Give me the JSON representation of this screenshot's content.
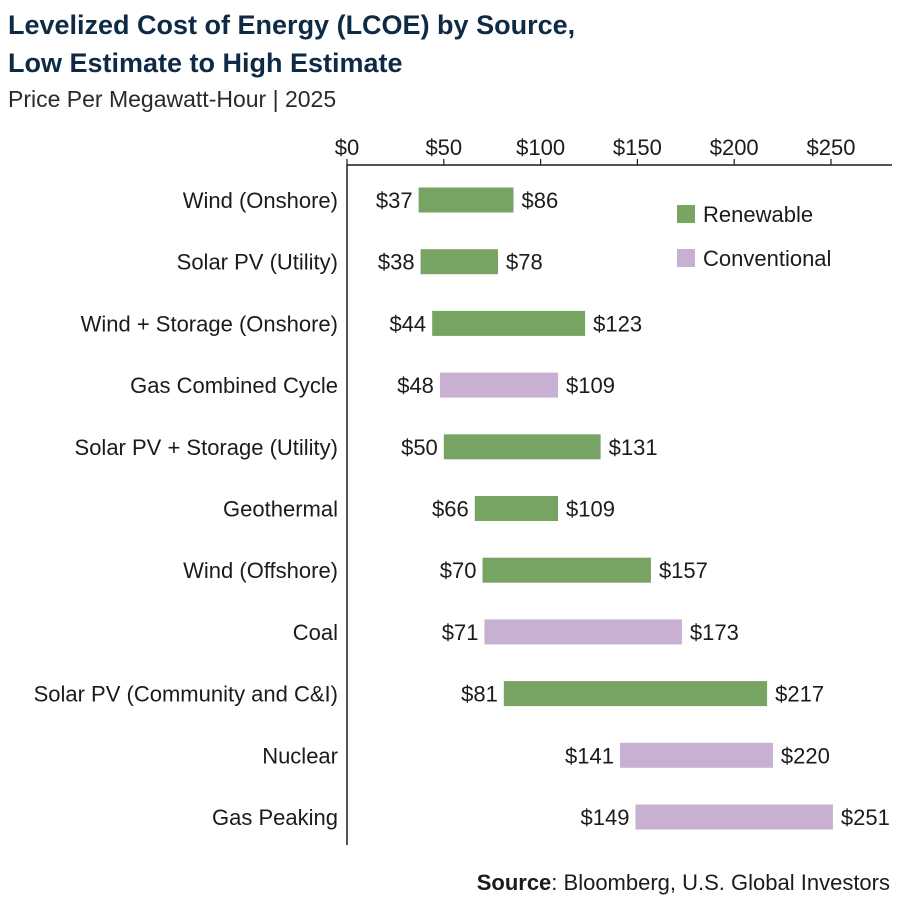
{
  "title_line1": "Levelized Cost of Energy (LCOE) by Source,",
  "title_line2": "Low Estimate to High Estimate",
  "subtitle": "Price Per Megawatt-Hour | 2025",
  "source_label": "Source",
  "source_text": ": Bloomberg, U.S. Global Investors",
  "colors": {
    "renewable": "#77a463",
    "conventional": "#c8b0d2",
    "axis": "#1b1b1b",
    "title": "#0e2a45"
  },
  "chart_data": {
    "type": "bar",
    "subtype": "floating-range-horizontal",
    "title": "Levelized Cost of Energy (LCOE) by Source, Low Estimate to High Estimate",
    "subtitle": "Price Per Megawatt-Hour | 2025",
    "xlabel": "",
    "ylabel": "",
    "xlim": [
      0,
      280
    ],
    "x_ticks": [
      0,
      50,
      100,
      150,
      200,
      250
    ],
    "x_tick_labels": [
      "$0",
      "$50",
      "$100",
      "$150",
      "$200",
      "$250"
    ],
    "legend_position": "top-right",
    "legend": [
      {
        "name": "Renewable",
        "key": "renewable"
      },
      {
        "name": "Conventional",
        "key": "conventional"
      }
    ],
    "categories": [
      "Wind (Onshore)",
      "Solar PV (Utility)",
      "Wind + Storage (Onshore)",
      "Gas Combined Cycle",
      "Solar PV + Storage (Utility)",
      "Geothermal",
      "Wind (Offshore)",
      "Coal",
      "Solar PV (Community and C&I)",
      "Nuclear",
      "Gas Peaking"
    ],
    "low": [
      37,
      38,
      44,
      48,
      50,
      66,
      70,
      71,
      81,
      141,
      149
    ],
    "high": [
      86,
      78,
      123,
      109,
      131,
      109,
      157,
      173,
      217,
      220,
      251
    ],
    "low_labels": [
      "$37",
      "$38",
      "$44",
      "$48",
      "$50",
      "$66",
      "$70",
      "$71",
      "$81",
      "$141",
      "$149"
    ],
    "high_labels": [
      "$86",
      "$78",
      "$123",
      "$109",
      "$131",
      "$109",
      "$157",
      "$173",
      "$217",
      "$220",
      "$251"
    ],
    "group": [
      "renewable",
      "renewable",
      "renewable",
      "conventional",
      "renewable",
      "renewable",
      "renewable",
      "conventional",
      "renewable",
      "conventional",
      "conventional"
    ]
  }
}
